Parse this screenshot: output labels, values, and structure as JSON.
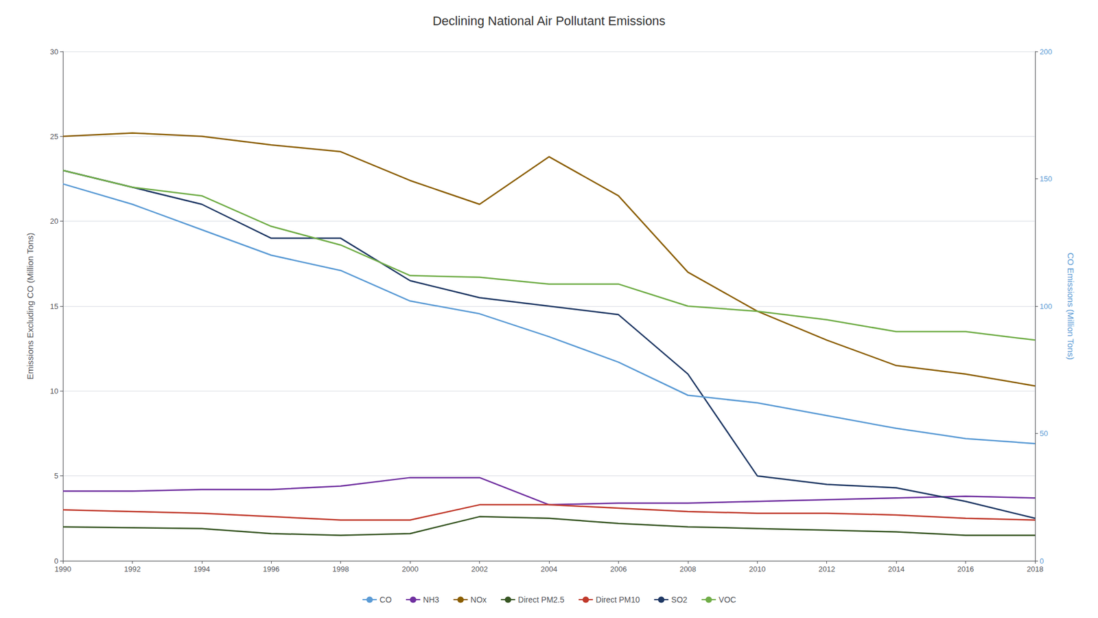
{
  "chart_data": {
    "type": "line",
    "title": "Declining National Air Pollutant Emissions",
    "x": [
      1990,
      1992,
      1994,
      1996,
      1998,
      2000,
      2002,
      2004,
      2006,
      2008,
      2010,
      2012,
      2014,
      2016,
      2018
    ],
    "xlim": [
      1990,
      2018
    ],
    "xticks": [
      1990,
      1992,
      1994,
      1996,
      1998,
      2000,
      2002,
      2004,
      2006,
      2008,
      2010,
      2012,
      2014,
      2016,
      2018
    ],
    "ylabel": "Emissions Excluding CO (Million Tons)",
    "ylim": [
      0,
      30
    ],
    "yticks": [
      0,
      5,
      10,
      15,
      20,
      25,
      30
    ],
    "y2label": "CO Emissions (Million Tons)",
    "y2lim": [
      0,
      200
    ],
    "y2ticks": [
      0,
      50,
      100,
      150,
      200
    ],
    "grid": true,
    "legend": "bottom",
    "series": [
      {
        "name": "CO",
        "color": "#5b9bd5",
        "axis": "y2",
        "values": [
          148,
          140,
          130,
          120,
          114,
          102,
          97,
          88,
          78,
          65,
          62,
          57,
          52,
          48,
          46
        ]
      },
      {
        "name": "NH3",
        "color": "#7030a0",
        "values": [
          4.1,
          4.1,
          4.2,
          4.2,
          4.4,
          4.9,
          4.9,
          3.3,
          3.4,
          3.4,
          3.5,
          3.6,
          3.7,
          3.8,
          3.7
        ]
      },
      {
        "name": "NOx",
        "color": "#8B5E00",
        "values": [
          25.0,
          25.2,
          25.0,
          24.5,
          24.1,
          22.4,
          21.0,
          23.8,
          21.5,
          17.0,
          14.7,
          13.0,
          11.5,
          11.0,
          10.3
        ]
      },
      {
        "name": "Direct PM2.5",
        "color": "#375623",
        "values": [
          2.0,
          1.95,
          1.9,
          1.6,
          1.5,
          1.6,
          2.6,
          2.5,
          2.2,
          2.0,
          1.9,
          1.8,
          1.7,
          1.5,
          1.5
        ]
      },
      {
        "name": "Direct PM10",
        "color": "#c0392b",
        "values": [
          3.0,
          2.9,
          2.8,
          2.6,
          2.4,
          2.4,
          3.3,
          3.3,
          3.1,
          2.9,
          2.8,
          2.8,
          2.7,
          2.5,
          2.4
        ]
      },
      {
        "name": "SO2",
        "color": "#1f3864",
        "values": [
          23.0,
          22.0,
          21.0,
          19.0,
          19.0,
          16.5,
          15.5,
          15.0,
          14.5,
          11.0,
          5.0,
          4.5,
          4.3,
          3.5,
          2.5
        ]
      },
      {
        "name": "VOC",
        "color": "#70ad47",
        "values": [
          23.0,
          22.0,
          21.5,
          19.7,
          18.6,
          16.8,
          16.7,
          16.3,
          16.3,
          15.0,
          14.7,
          14.2,
          13.5,
          13.5,
          13.0
        ]
      }
    ]
  }
}
